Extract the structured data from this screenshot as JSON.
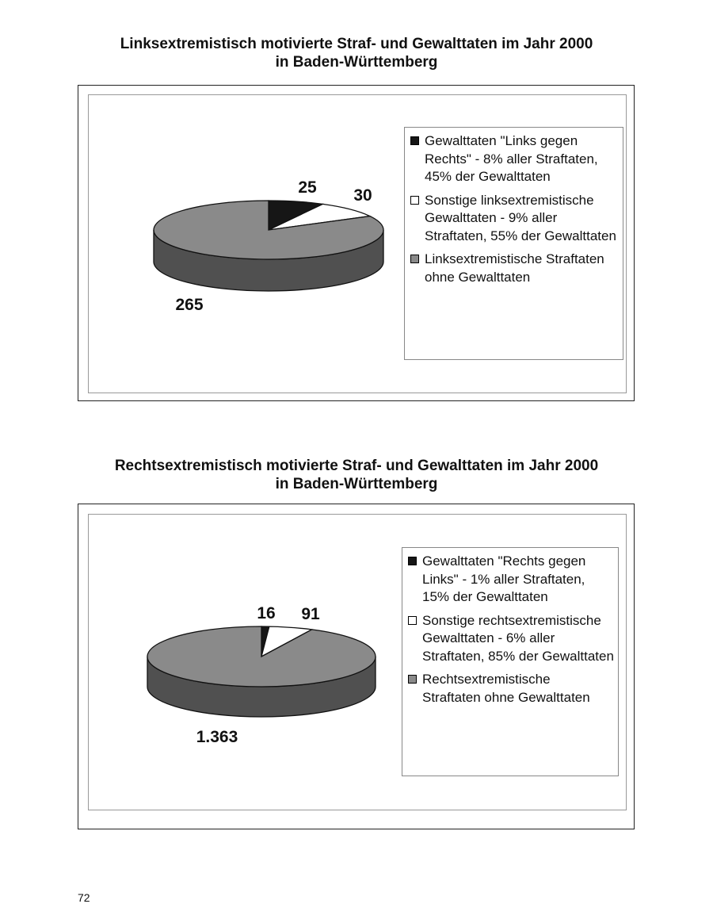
{
  "page_number": "72",
  "chart_data": [
    {
      "type": "pie",
      "style": "3d",
      "title_lines": [
        "Linksextremistisch motivierte Straf- und Gewalttaten im Jahr 2000",
        "in Baden-Württemberg"
      ],
      "legend_position": "right",
      "slices": [
        {
          "value": 25,
          "label": "25",
          "legend": "Gewalttaten \"Links gegen Rechts\" - 8% aller Straftaten, 45% der Gewalttaten",
          "color": "#161616"
        },
        {
          "value": 30,
          "label": "30",
          "legend": "Sonstige linksextremistische Gewalttaten - 9% aller Straftaten, 55% der Gewalttaten",
          "color": "#ffffff"
        },
        {
          "value": 265,
          "label": "265",
          "legend": "Linksextremistische Straftaten ohne Gewalttaten",
          "color": "#8a8a8a"
        }
      ]
    },
    {
      "type": "pie",
      "style": "3d",
      "title_lines": [
        "Rechtsextremistisch motivierte Straf- und Gewalttaten im Jahr 2000",
        "in Baden-Württemberg"
      ],
      "legend_position": "right",
      "slices": [
        {
          "value": 16,
          "label": "16",
          "legend": "Gewalttaten \"Rechts gegen Links\" - 1% aller Straftaten, 15% der Gewalttaten",
          "color": "#161616"
        },
        {
          "value": 91,
          "label": "91",
          "legend": "Sonstige rechtsextremistische Gewalttaten - 6% aller Straftaten, 85% der Gewalttaten",
          "color": "#ffffff"
        },
        {
          "value": 1363,
          "label": "1.363",
          "legend": "Rechtsextremistische Straftaten ohne Gewalttaten",
          "color": "#8a8a8a"
        }
      ]
    }
  ]
}
